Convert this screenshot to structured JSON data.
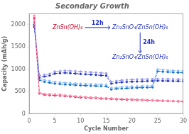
{
  "chart_data": {
    "type": "line",
    "title": "Secondary Growth",
    "x_label": "Cycle Number",
    "y_label": "Capacity (mAh/g)",
    "x": [
      1,
      2,
      3,
      4,
      5,
      6,
      7,
      8,
      9,
      10,
      11,
      12,
      13,
      14,
      15,
      16,
      17,
      18,
      19,
      20,
      21,
      22,
      23,
      24,
      25,
      26,
      27,
      28,
      29,
      30
    ],
    "series": [
      {
        "color": "#ff88aa",
        "marker": "circle",
        "line_style": "dashed",
        "values": [
          2200,
          480,
          450,
          445,
          440,
          435,
          420,
          410,
          400,
          390,
          380,
          375,
          370,
          360,
          355,
          350,
          345,
          340,
          335,
          330,
          325,
          320,
          315,
          310,
          305,
          300,
          295,
          290,
          285,
          280
        ]
      },
      {
        "color": "#dd2255",
        "marker": "circle",
        "line_style": "dashed",
        "values": [
          2150,
          460,
          430,
          420,
          415,
          410,
          400,
          390,
          380,
          370,
          365,
          360,
          355,
          345,
          340,
          335,
          330,
          325,
          320,
          318,
          315,
          312,
          308,
          305,
          300,
          295,
          290,
          288,
          283,
          278
        ]
      },
      {
        "color": "#9999ee",
        "marker": "circle",
        "line_style": "dashed",
        "values": [
          2050,
          860,
          880,
          900,
          950,
          960,
          970,
          965,
          958,
          950,
          942,
          935,
          928,
          920,
          912,
          720,
          740,
          755,
          765,
          770,
          775,
          778,
          780,
          782,
          785,
          785,
          783,
          780,
          778,
          775
        ]
      },
      {
        "color": "#2233bb",
        "marker": "circle",
        "line_style": "dashed",
        "values": [
          1950,
          820,
          840,
          860,
          905,
          915,
          920,
          915,
          905,
          895,
          888,
          882,
          875,
          865,
          858,
          680,
          700,
          710,
          718,
          724,
          728,
          732,
          736,
          740,
          743,
          742,
          740,
          738,
          736,
          733
        ]
      },
      {
        "color": "#88bbff",
        "marker": "circle",
        "line_style": "dashed",
        "values": [
          2100,
          800,
          760,
          740,
          720,
          710,
          700,
          692,
          685,
          678,
          672,
          668,
          664,
          660,
          656,
          580,
          595,
          605,
          612,
          618,
          622,
          626,
          630,
          633,
          1000,
          990,
          982,
          975,
          968,
          962
        ]
      },
      {
        "color": "#0066bb",
        "marker": "circle",
        "line_style": "dashed",
        "values": [
          2000,
          760,
          720,
          700,
          682,
          672,
          662,
          655,
          648,
          641,
          636,
          632,
          628,
          624,
          620,
          550,
          565,
          572,
          578,
          583,
          587,
          591,
          595,
          598,
          960,
          948,
          940,
          934,
          928,
          922
        ]
      }
    ],
    "xlim": [
      0,
      30
    ],
    "xticks": [
      0,
      5,
      10,
      15,
      20,
      25,
      30
    ],
    "ylim": [
      0,
      2250
    ],
    "yticks": [
      0,
      500,
      1000,
      1500,
      2000
    ],
    "grid": false,
    "annotations": [
      {
        "text": "ZnSn(OH)₆",
        "color": "#cc0022"
      },
      {
        "text": "12h",
        "color": "#2233cc"
      },
      {
        "text": "Zn₂SnO₄/ZnSn(OH)₆",
        "color": "#2233bb"
      },
      {
        "text": "24h",
        "color": "#2233cc"
      },
      {
        "text": "Zn₂SnO₄/ZnSn(OH)₆",
        "color": "#2233bb"
      }
    ]
  }
}
